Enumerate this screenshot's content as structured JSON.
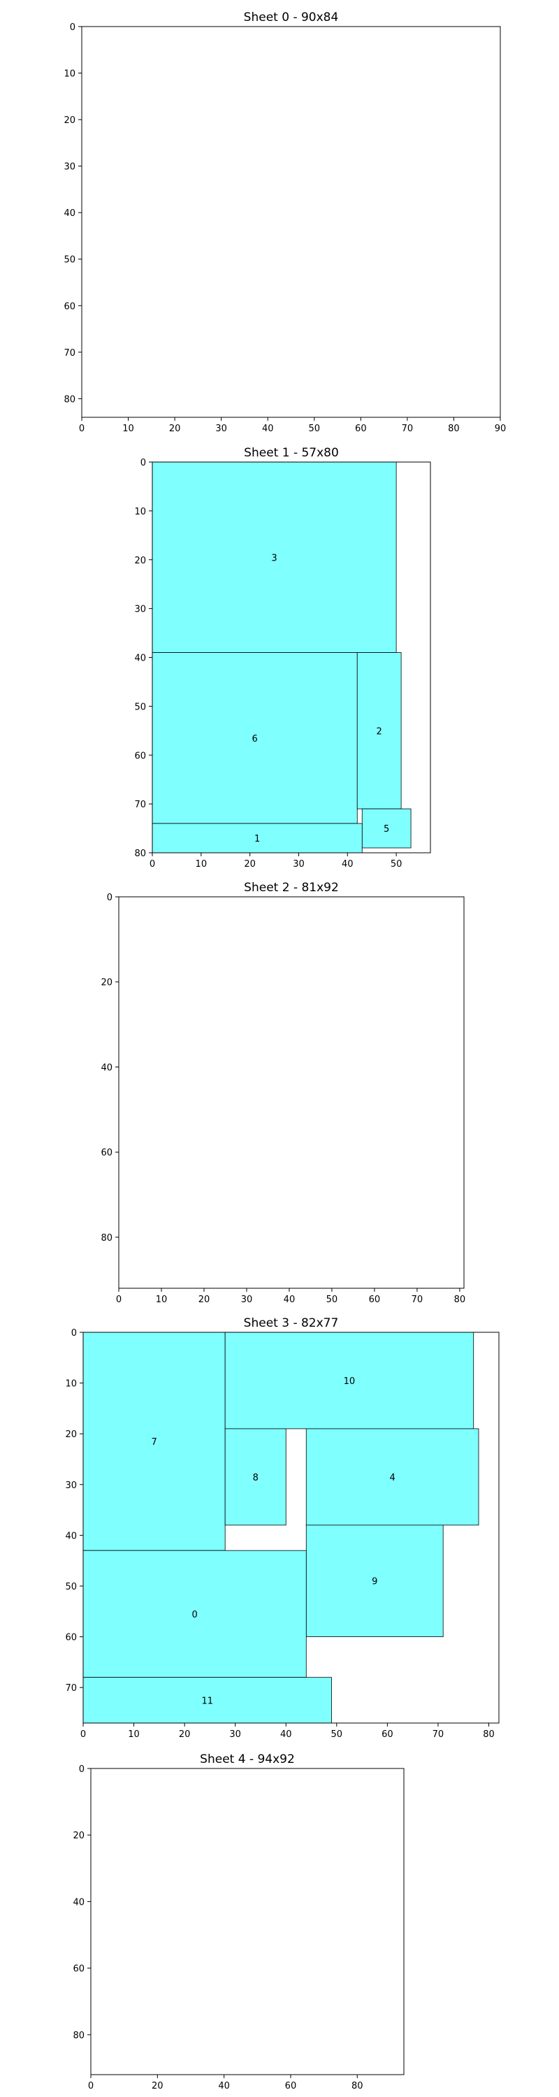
{
  "chart_data": [
    {
      "type": "rect-packing",
      "title": "Sheet 0 - 90x84",
      "sheet": {
        "width": 90,
        "height": 84
      },
      "xlim": [
        0,
        90
      ],
      "ylim": [
        0,
        84
      ],
      "y_inverted": true,
      "xticks": [
        0,
        10,
        20,
        30,
        40,
        50,
        60,
        70,
        80,
        90
      ],
      "yticks": [
        0,
        10,
        20,
        30,
        40,
        50,
        60,
        70,
        80
      ],
      "pieces": []
    },
    {
      "type": "rect-packing",
      "title": "Sheet 1 - 57x80",
      "sheet": {
        "width": 57,
        "height": 80
      },
      "xlim": [
        0,
        57
      ],
      "ylim": [
        0,
        80
      ],
      "y_inverted": true,
      "xticks": [
        0,
        10,
        20,
        30,
        40,
        50
      ],
      "yticks": [
        0,
        10,
        20,
        30,
        40,
        50,
        60,
        70,
        80
      ],
      "pieces": [
        {
          "id": "3",
          "x": 0,
          "y": 0,
          "w": 50,
          "h": 39
        },
        {
          "id": "6",
          "x": 0,
          "y": 39,
          "w": 42,
          "h": 35
        },
        {
          "id": "2",
          "x": 42,
          "y": 39,
          "w": 9,
          "h": 32
        },
        {
          "id": "5",
          "x": 43,
          "y": 71,
          "w": 10,
          "h": 8
        },
        {
          "id": "1",
          "x": 0,
          "y": 74,
          "w": 43,
          "h": 6
        }
      ]
    },
    {
      "type": "rect-packing",
      "title": "Sheet 2 - 81x92",
      "sheet": {
        "width": 81,
        "height": 92
      },
      "xlim": [
        0,
        81
      ],
      "ylim": [
        0,
        92
      ],
      "y_inverted": true,
      "xticks": [
        0,
        10,
        20,
        30,
        40,
        50,
        60,
        70,
        80
      ],
      "yticks": [
        0,
        20,
        40,
        60,
        80
      ],
      "pieces": []
    },
    {
      "type": "rect-packing",
      "title": "Sheet 3 - 82x77",
      "sheet": {
        "width": 82,
        "height": 77
      },
      "xlim": [
        0,
        82
      ],
      "ylim": [
        0,
        77
      ],
      "y_inverted": true,
      "xticks": [
        0,
        10,
        20,
        30,
        40,
        50,
        60,
        70,
        80
      ],
      "yticks": [
        0,
        10,
        20,
        30,
        40,
        50,
        60,
        70
      ],
      "pieces": [
        {
          "id": "7",
          "x": 0,
          "y": 0,
          "w": 28,
          "h": 43
        },
        {
          "id": "10",
          "x": 28,
          "y": 0,
          "w": 49,
          "h": 19
        },
        {
          "id": "8",
          "x": 28,
          "y": 19,
          "w": 12,
          "h": 19
        },
        {
          "id": "4",
          "x": 44,
          "y": 19,
          "w": 34,
          "h": 19
        },
        {
          "id": "9",
          "x": 44,
          "y": 38,
          "w": 27,
          "h": 22
        },
        {
          "id": "0",
          "x": 0,
          "y": 43,
          "w": 44,
          "h": 25
        },
        {
          "id": "11",
          "x": 0,
          "y": 68,
          "w": 49,
          "h": 9
        }
      ]
    },
    {
      "type": "rect-packing",
      "title": "Sheet 4 - 94x92",
      "sheet": {
        "width": 94,
        "height": 92
      },
      "xlim": [
        0,
        94
      ],
      "ylim": [
        0,
        92
      ],
      "y_inverted": true,
      "xticks": [
        0,
        20,
        40,
        60,
        80
      ],
      "yticks": [
        0,
        20,
        40,
        60,
        80
      ],
      "pieces": []
    }
  ],
  "colors": {
    "piece_fill": "#80ffff",
    "edge": "#000000",
    "background": "#ffffff"
  }
}
